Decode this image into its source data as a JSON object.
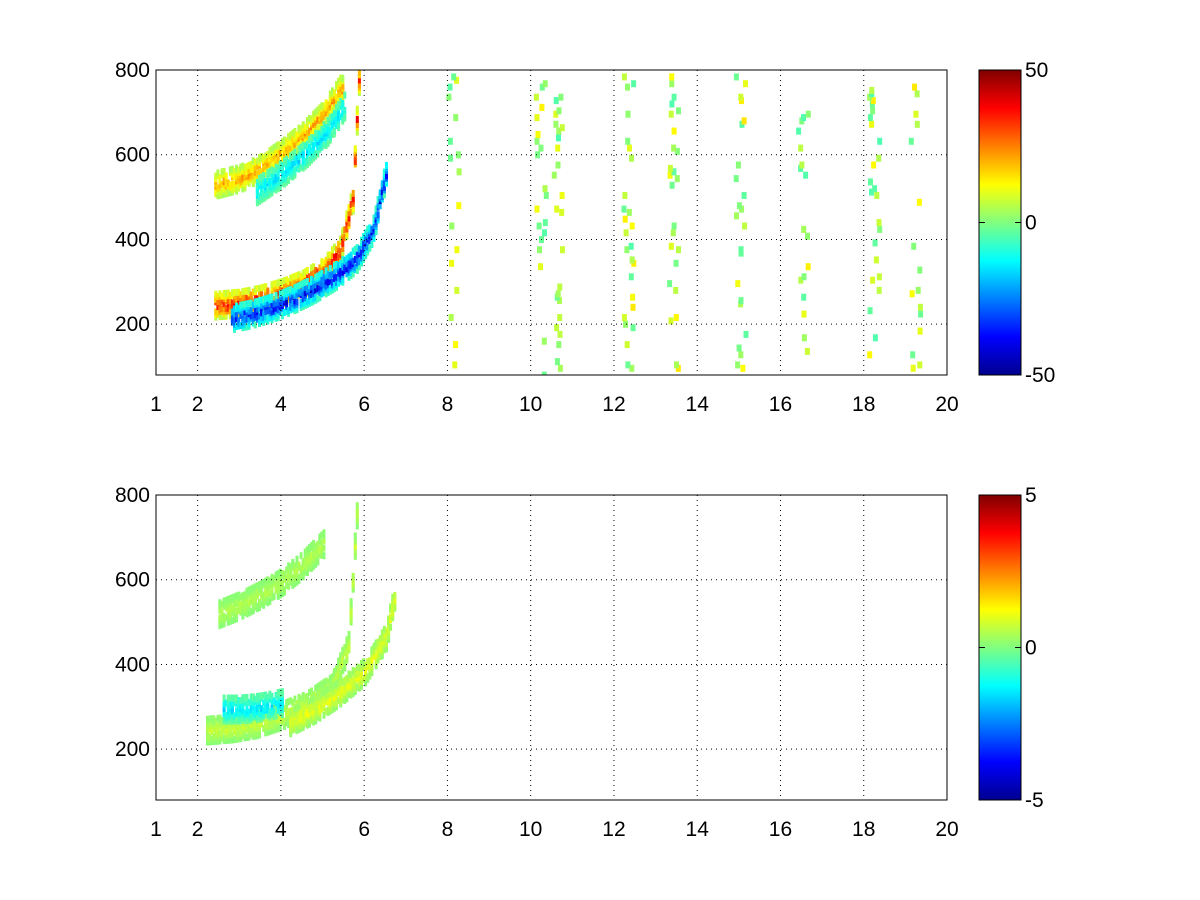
{
  "chart_data": [
    {
      "type": "heatmap",
      "title": "",
      "xlabel": "",
      "ylabel": "",
      "xlim": [
        1,
        20
      ],
      "ylim": [
        80,
        800
      ],
      "x_ticks": [
        1,
        2,
        4,
        6,
        8,
        10,
        12,
        14,
        16,
        18,
        20
      ],
      "y_ticks": [
        200,
        400,
        600,
        800
      ],
      "grid": true,
      "colormap": "jet",
      "colorbar": {
        "clim": [
          -50,
          50
        ],
        "ticks": [
          50,
          0,
          -50
        ]
      },
      "bands": [
        {
          "name": "",
          "x": [
            2.4,
            3.0,
            3.5,
            4.0,
            4.5,
            5.0,
            5.4,
            5.7,
            5.85
          ],
          "y": [
            250,
            255,
            265,
            280,
            300,
            330,
            380,
            500,
            780
          ],
          "value": 42
        },
        {
          "name": "",
          "x": [
            2.8,
            3.3,
            3.8,
            4.3,
            4.8,
            5.3,
            5.8,
            6.2,
            6.5
          ],
          "y": [
            220,
            230,
            245,
            265,
            290,
            320,
            360,
            430,
            560
          ],
          "value": -42
        },
        {
          "name": "",
          "x": [
            2.4,
            3.0,
            3.5,
            4.0,
            4.5,
            5.0,
            5.4
          ],
          "y": [
            535,
            550,
            575,
            610,
            650,
            700,
            760
          ],
          "value": 25
        },
        {
          "name": "",
          "x": [
            3.4,
            4.0,
            4.6,
            5.1,
            5.5
          ],
          "y": [
            520,
            560,
            610,
            660,
            720
          ],
          "value": -18
        }
      ],
      "noise_columns_x": [
        8.1,
        10.2,
        10.6,
        12.3,
        13.4,
        15.0,
        16.5,
        18.2,
        19.2
      ],
      "noise_amplitude": 10
    },
    {
      "type": "heatmap",
      "title": "",
      "xlabel": "",
      "ylabel": "",
      "xlim": [
        1,
        20
      ],
      "ylim": [
        80,
        800
      ],
      "x_ticks": [
        1,
        2,
        4,
        6,
        8,
        10,
        12,
        14,
        16,
        18,
        20
      ],
      "y_ticks": [
        200,
        400,
        600,
        800
      ],
      "grid": true,
      "colormap": "jet",
      "colorbar": {
        "clim": [
          -5,
          5
        ],
        "ticks": [
          5,
          0,
          -5
        ]
      },
      "bands": [
        {
          "name": "",
          "x": [
            2.2,
            2.8,
            3.4,
            4.0,
            4.6,
            5.2,
            5.6,
            5.8
          ],
          "y": [
            250,
            255,
            265,
            285,
            310,
            350,
            450,
            760
          ],
          "value": 0.8
        },
        {
          "name": "",
          "x": [
            2.6,
            3.0,
            3.5,
            4.0
          ],
          "y": [
            300,
            300,
            305,
            315
          ],
          "value": -1.8
        },
        {
          "name": "",
          "x": [
            4.2,
            4.8,
            5.4,
            6.0,
            6.5,
            6.7
          ],
          "y": [
            270,
            300,
            340,
            390,
            470,
            560
          ],
          "value": 1.2
        },
        {
          "name": "",
          "x": [
            2.5,
            3.0,
            3.5,
            4.0,
            4.5,
            5.0
          ],
          "y": [
            525,
            545,
            570,
            600,
            640,
            690
          ],
          "value": 0.6
        }
      ],
      "noise_columns_x": [],
      "noise_amplitude": 0
    }
  ]
}
